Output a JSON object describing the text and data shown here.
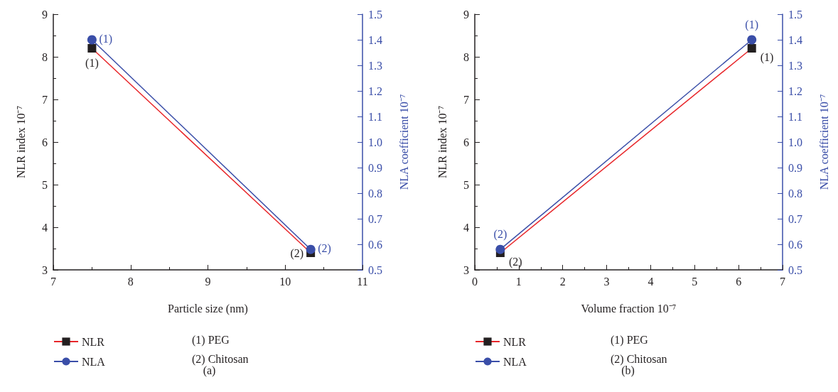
{
  "chart_data": [
    {
      "type": "line",
      "title": "(a)",
      "xlabel": "Particle size (nm)",
      "ylabel": "NLR index 10⁻⁷",
      "y2label": "NLA coefficient 10⁻⁷",
      "x": [
        7.5,
        10.33
      ],
      "series": [
        {
          "name": "NLR",
          "color": "#e8262a",
          "marker": "square",
          "values": [
            8.2,
            3.4
          ]
        },
        {
          "name": "NLA",
          "color": "#3a4ea8",
          "marker": "circle",
          "axis": "y2",
          "values": [
            1.4,
            0.58
          ]
        }
      ],
      "xlim": [
        7,
        11
      ],
      "xticks": [
        7,
        8,
        9,
        10,
        11
      ],
      "ylim": [
        3,
        9
      ],
      "yticks": [
        3,
        4,
        5,
        6,
        7,
        8,
        9
      ],
      "y2lim": [
        0.5,
        1.5
      ],
      "y2ticks": [
        0.5,
        0.6,
        0.7,
        0.8,
        0.9,
        {
          "value": 1,
          "label": "1.0"
        },
        1.1,
        1.2,
        1.3,
        1.4,
        1.5
      ],
      "legend": "bottom left",
      "grid": false,
      "annotations": [
        {
          "text": "(1)",
          "x": 7.5,
          "y": 8.2
        },
        {
          "text": "(2)",
          "x": 10.33,
          "y": 3.4
        },
        {
          "text": "(1)",
          "x": 7.5,
          "y": 8.4
        },
        {
          "text": "(2)",
          "x": 10.33,
          "y": 3.48
        },
        "(1) PEG",
        "(2) Chitosan"
      ]
    },
    {
      "type": "line",
      "title": "(b)",
      "xlabel": "Volume fraction 10⁻⁷",
      "ylabel": "NLR index 10⁻⁷",
      "y2label": "NLA coefficient 10⁻⁷",
      "x": [
        0.58,
        6.3
      ],
      "series": [
        {
          "name": "NLR",
          "color": "#e8262a",
          "marker": "square",
          "values": [
            3.4,
            8.2
          ]
        },
        {
          "name": "NLA",
          "color": "#3a4ea8",
          "marker": "circle",
          "axis": "y2",
          "values": [
            0.58,
            1.4
          ]
        }
      ],
      "xlim": [
        0,
        7
      ],
      "xticks": [
        0,
        1,
        2,
        3,
        4,
        5,
        6,
        7
      ],
      "ylim": [
        3,
        9
      ],
      "yticks": [
        3,
        4,
        5,
        6,
        7,
        8,
        9
      ],
      "y2lim": [
        0.5,
        1.5
      ],
      "y2ticks": [
        0.5,
        0.6,
        0.7,
        0.8,
        0.9,
        {
          "value": 1,
          "label": "1.0"
        },
        1.1,
        1.2,
        1.3,
        1.4,
        1.5
      ],
      "legend": "bottom left",
      "grid": false,
      "annotations": [
        {
          "text": "(2)",
          "x": 0.58,
          "y": 3.4
        },
        {
          "text": "(1)",
          "x": 6.3,
          "y": 8.2
        },
        {
          "text": "(2)",
          "x": 0.58,
          "y": 3.48
        },
        {
          "text": "(1)",
          "x": 6.3,
          "y": 8.4
        },
        "(1) PEG",
        "(2) Chitosan"
      ]
    }
  ]
}
